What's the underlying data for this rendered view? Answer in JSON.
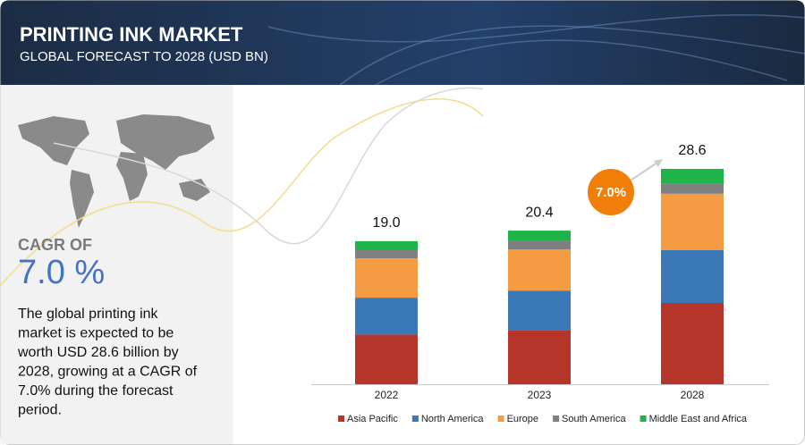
{
  "header": {
    "title": "PRINTING INK MARKET",
    "subtitle": "GLOBAL FORECAST TO 2028 (USD BN)"
  },
  "sidebar": {
    "cagr_label": "CAGR OF",
    "cagr_value": "7.0 %",
    "description_lines": [
      "The global printing ink",
      "market is expected to be",
      "worth USD 28.6 billion by",
      "2028, growing at a CAGR of",
      "7.0% during the forecast",
      "period."
    ]
  },
  "chart_data": {
    "type": "stacked_bar",
    "categories": [
      "2022",
      "2023",
      "2028"
    ],
    "series": [
      {
        "name": "Asia Pacific",
        "color": "#b5352b",
        "values": [
          6.6,
          7.2,
          10.8
        ]
      },
      {
        "name": "North America",
        "color": "#3a78b8",
        "values": [
          4.9,
          5.2,
          7.0
        ]
      },
      {
        "name": "Europe",
        "color": "#f59b42",
        "values": [
          5.2,
          5.5,
          7.5
        ]
      },
      {
        "name": "South America",
        "color": "#808080",
        "values": [
          1.1,
          1.2,
          1.3
        ]
      },
      {
        "name": "Middle East and Africa",
        "color": "#1fb44a",
        "values": [
          1.2,
          1.3,
          2.0
        ]
      }
    ],
    "totals": [
      19.0,
      20.4,
      28.6
    ],
    "total_labels": [
      "19.0",
      "20.4",
      "28.6"
    ],
    "annotation": "7.0%",
    "legend": "bottom"
  }
}
